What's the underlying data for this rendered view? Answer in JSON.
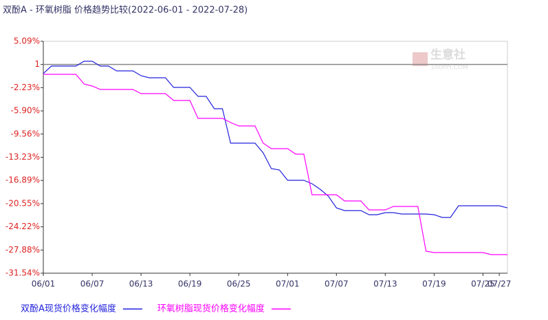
{
  "chart_data": {
    "type": "line",
    "title": "双酚A - 环氧树脂 价格趋势比较(2022-06-01 - 2022-07-28)",
    "watermark": "生意社",
    "watermark_sub": "100PPI.COM",
    "categories": [
      "06/01",
      null,
      null,
      null,
      null,
      null,
      "06/07",
      null,
      null,
      null,
      null,
      null,
      "06/13",
      null,
      null,
      null,
      null,
      null,
      "06/19",
      null,
      null,
      null,
      null,
      null,
      "06/25",
      null,
      null,
      null,
      null,
      null,
      "07/01",
      null,
      null,
      null,
      null,
      null,
      "07/07",
      null,
      null,
      null,
      null,
      null,
      "07/13",
      null,
      null,
      null,
      null,
      null,
      "07/19",
      null,
      null,
      null,
      null,
      null,
      "07/25",
      null,
      "07/27",
      null
    ],
    "ylim": [
      -31.54,
      5.09
    ],
    "yticks": [
      {
        "value": 5.09,
        "label": "5.09%"
      },
      {
        "value": 1.43,
        "label": "1"
      },
      {
        "value": -2.23,
        "label": "-2.23%"
      },
      {
        "value": -5.9,
        "label": "-5.90%"
      },
      {
        "value": -9.56,
        "label": "-9.56%"
      },
      {
        "value": -13.23,
        "label": "-13.23%"
      },
      {
        "value": -16.89,
        "label": "-16.89%"
      },
      {
        "value": -20.55,
        "label": "-20.55%"
      },
      {
        "value": -24.22,
        "label": "-24.22%"
      },
      {
        "value": -27.88,
        "label": "-27.88%"
      },
      {
        "value": -31.54,
        "label": "-31.54%"
      }
    ],
    "series": [
      {
        "name": "双酚A现货价格变化幅度",
        "color": "#2222dd",
        "values": [
          0,
          1.18,
          1.18,
          1.18,
          1.18,
          1.94,
          1.94,
          1.18,
          1.18,
          0.42,
          0.42,
          0.42,
          -0.35,
          -0.67,
          -0.67,
          -0.67,
          -2.19,
          -2.19,
          -2.19,
          -3.61,
          -3.61,
          -5.56,
          -5.56,
          -11.0,
          -11.0,
          -11.0,
          -11.0,
          -12.52,
          -15.02,
          -15.24,
          -16.87,
          -16.87,
          -16.87,
          -17.41,
          -18.28,
          -19.37,
          -21.22,
          -21.65,
          -21.65,
          -21.65,
          -22.3,
          -22.3,
          -21.98,
          -21.98,
          -22.19,
          -22.19,
          -22.19,
          -22.19,
          -22.3,
          -22.74,
          -22.74,
          -20.89,
          -20.89,
          -20.89,
          -20.89,
          -20.89,
          -20.89,
          -21.22
        ]
      },
      {
        "name": "环氧树脂现货价格变化幅度",
        "color": "#ff00ff",
        "values": [
          -0.13,
          -0.13,
          -0.13,
          -0.13,
          -0.13,
          -1.65,
          -1.98,
          -2.52,
          -2.52,
          -2.52,
          -2.52,
          -2.52,
          -3.17,
          -3.17,
          -3.17,
          -3.17,
          -4.26,
          -4.26,
          -4.26,
          -7.08,
          -7.08,
          -7.08,
          -7.08,
          -7.74,
          -8.28,
          -8.28,
          -8.28,
          -11.0,
          -11.87,
          -11.87,
          -11.87,
          -12.74,
          -12.74,
          -19.15,
          -19.15,
          -19.15,
          -19.15,
          -20.13,
          -20.13,
          -20.13,
          -21.54,
          -21.54,
          -21.54,
          -21.0,
          -21.0,
          -21.0,
          -21.0,
          -28.06,
          -28.28,
          -28.28,
          -28.28,
          -28.28,
          -28.28,
          -28.28,
          -28.28,
          -28.61,
          -28.61,
          -28.61
        ]
      }
    ]
  }
}
